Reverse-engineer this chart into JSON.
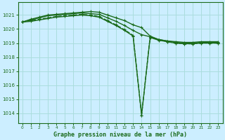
{
  "title": "Graphe pression niveau de la mer (hPa)",
  "bg_color": "#cceeff",
  "grid_color": "#aadddd",
  "line_color": "#1a6b1a",
  "xlim": [
    -0.5,
    23.5
  ],
  "ylim": [
    1013.3,
    1021.9
  ],
  "yticks": [
    1014,
    1015,
    1016,
    1017,
    1018,
    1019,
    1020,
    1021
  ],
  "xticks": [
    0,
    1,
    2,
    3,
    4,
    5,
    6,
    7,
    8,
    9,
    10,
    11,
    12,
    13,
    14,
    15,
    16,
    17,
    18,
    19,
    20,
    21,
    22,
    23
  ],
  "series": [
    {
      "y": [
        1020.5,
        1020.7,
        1020.85,
        1021.0,
        1021.05,
        1021.1,
        1021.15,
        1021.2,
        1021.25,
        1021.2,
        1021.0,
        1020.8,
        1020.6,
        1020.3,
        1020.1,
        1019.5,
        1019.25,
        1019.15,
        1019.1,
        1019.05,
        1019.05,
        1019.1,
        1019.1,
        1019.1
      ],
      "linestyle": "-",
      "linewidth": 1.0,
      "marker": "+"
    },
    {
      "y": [
        1020.5,
        1020.65,
        1020.8,
        1020.95,
        1021.0,
        1021.05,
        1021.1,
        1021.15,
        1021.1,
        1021.05,
        1020.8,
        1020.55,
        1020.25,
        1019.9,
        1019.6,
        1019.45,
        1019.25,
        1019.15,
        1019.05,
        1019.0,
        1019.0,
        1019.05,
        1019.05,
        1019.05
      ],
      "linestyle": "-",
      "linewidth": 1.0,
      "marker": "+"
    },
    {
      "y": [
        1020.5,
        1020.6,
        1020.7,
        1020.8,
        1020.9,
        1020.95,
        1021.0,
        1021.05,
        1021.0,
        1020.9,
        1020.6,
        1020.3,
        1019.95,
        1019.55,
        1013.85,
        1019.45,
        1019.25,
        1019.1,
        1019.0,
        1018.95,
        1018.95,
        1019.0,
        1019.0,
        1019.0
      ],
      "linestyle": "--",
      "linewidth": 1.0,
      "marker": "+"
    },
    {
      "y": [
        1020.5,
        1020.55,
        1020.65,
        1020.75,
        1020.85,
        1020.9,
        1020.95,
        1021.0,
        1020.95,
        1020.85,
        1020.55,
        1020.25,
        1019.9,
        1019.5,
        1013.85,
        1019.4,
        1019.2,
        1019.1,
        1019.0,
        1018.95,
        1018.95,
        1019.0,
        1019.0,
        1019.0
      ],
      "linestyle": "-",
      "linewidth": 1.0,
      "marker": "+"
    }
  ]
}
